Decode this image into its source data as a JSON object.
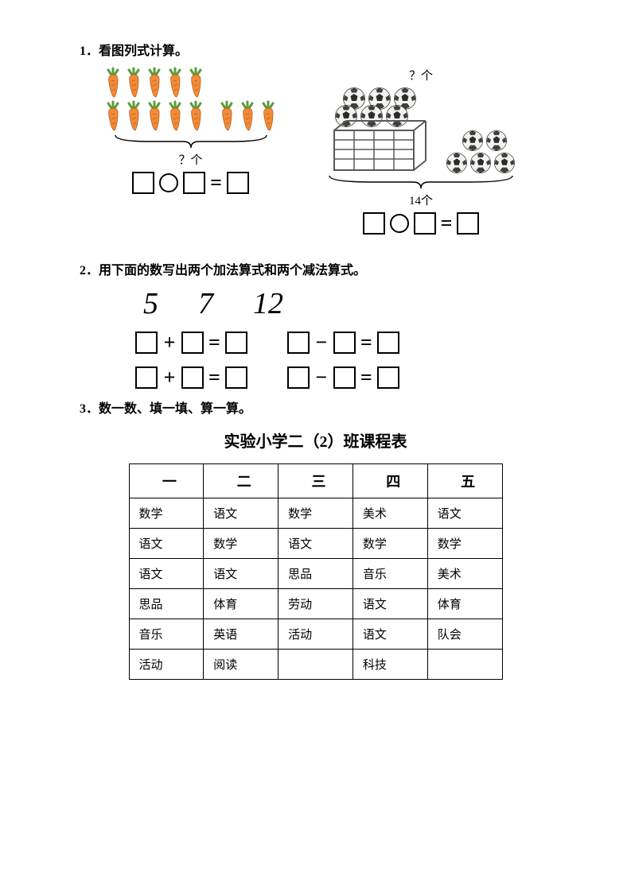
{
  "q1": {
    "title": "1．看图列式计算。",
    "left": {
      "label": "？个"
    },
    "right": {
      "top_label": "？个",
      "bottom_label": "14个"
    }
  },
  "q2": {
    "title": "2．用下面的数写出两个加法算式和两个减法算式。",
    "numbers": [
      "5",
      "7",
      "12"
    ],
    "plus": "+",
    "minus": "−",
    "equals": "="
  },
  "q3": {
    "title": "3．数一数、填一填、算一算。",
    "schedule_title": "实验小学二（2）班课程表",
    "table": {
      "headers": [
        "一",
        "二",
        "三",
        "四",
        "五"
      ],
      "rows": [
        [
          "数学",
          "语文",
          "数学",
          "美术",
          "语文"
        ],
        [
          "语文",
          "数学",
          "语文",
          "数学",
          "数学"
        ],
        [
          "语文",
          "语文",
          "思品",
          "音乐",
          "美术"
        ],
        [
          "思品",
          "体育",
          "劳动",
          "语文",
          "体育"
        ],
        [
          "音乐",
          "英语",
          "活动",
          "语文",
          "队会"
        ],
        [
          "活动",
          "阅读",
          "",
          "科技",
          ""
        ]
      ]
    }
  },
  "style": {
    "carrot_body": "#f28b36",
    "carrot_leaf": "#5f9b3b",
    "ball_white": "#f2f2ee",
    "ball_black": "#2b2b2b",
    "crate": "#5a5a5a"
  }
}
